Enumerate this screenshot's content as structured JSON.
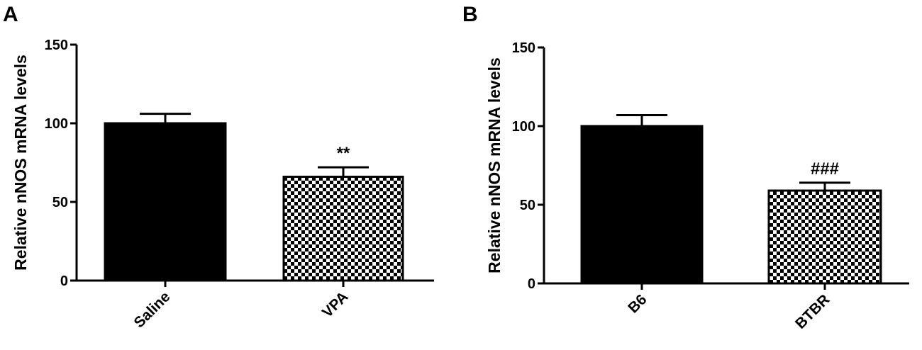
{
  "chart_data": [
    {
      "panel_label": "A",
      "type": "bar",
      "categories": [
        "Saline",
        "VPA"
      ],
      "values": [
        100,
        66
      ],
      "errors": [
        6,
        6
      ],
      "patterns": [
        "solid",
        "checker"
      ],
      "annotations": [
        "",
        "**"
      ],
      "ylabel": "Relative nNOS mRNA levels",
      "ylim": [
        0,
        150
      ],
      "yticks": [
        0,
        50,
        100,
        150
      ]
    },
    {
      "panel_label": "B",
      "type": "bar",
      "categories": [
        "B6",
        "BTBR"
      ],
      "values": [
        100,
        59
      ],
      "errors": [
        7,
        5
      ],
      "patterns": [
        "solid",
        "checker"
      ],
      "annotations": [
        "",
        "###"
      ],
      "ylabel": "Relative nNOS mRNA levels",
      "ylim": [
        0,
        150
      ],
      "yticks": [
        0,
        50,
        100,
        150
      ]
    }
  ]
}
